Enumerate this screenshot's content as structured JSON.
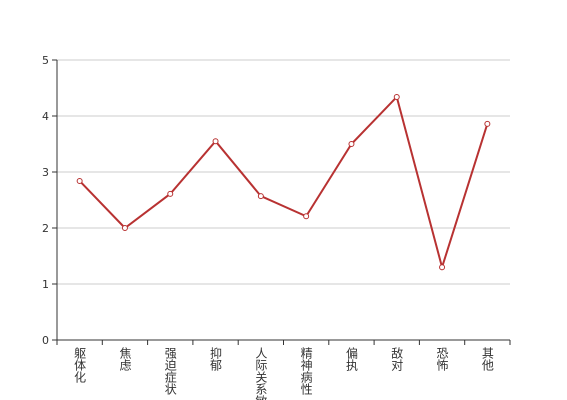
{
  "chart_data": {
    "type": "line",
    "categories": [
      "躯体化",
      "焦虑",
      "强迫症状",
      "抑郁",
      "人际关系敏感",
      "精神病性",
      "偏执",
      "敌对",
      "恐怖",
      "其他"
    ],
    "series": [
      {
        "color": "#b83232",
        "values": [
          2.84,
          2.0,
          2.61,
          3.55,
          2.57,
          2.21,
          3.5,
          4.34,
          1.3,
          3.86
        ]
      }
    ],
    "ylim": [
      0,
      5
    ],
    "yticks": [
      0,
      1,
      2,
      3,
      4,
      5
    ],
    "grid": true
  }
}
